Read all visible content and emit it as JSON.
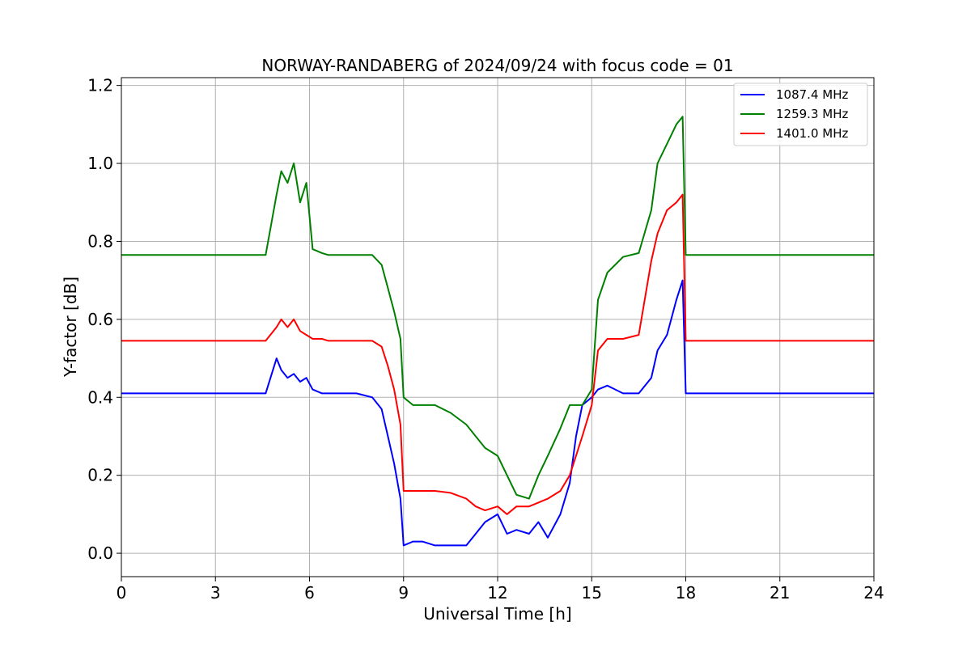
{
  "chart_data": {
    "type": "line",
    "title": "NORWAY-RANDABERG of 2024/09/24 with focus code = 01",
    "xlabel": "Universal Time [h]",
    "ylabel": "Y-factor [dB]",
    "xlim": [
      0,
      24
    ],
    "ylim": [
      -0.06,
      1.22
    ],
    "xticks": [
      0,
      3,
      6,
      9,
      12,
      15,
      18,
      21,
      24
    ],
    "xtick_labels": [
      "0",
      "3",
      "6",
      "9",
      "12",
      "15",
      "18",
      "21",
      "24"
    ],
    "yticks": [
      0.0,
      0.2,
      0.4,
      0.6,
      0.8,
      1.0,
      1.2
    ],
    "ytick_labels": [
      "0.0",
      "0.2",
      "0.4",
      "0.6",
      "0.8",
      "1.0",
      "1.2"
    ],
    "grid": true,
    "legend_position": "top-right",
    "series": [
      {
        "name": "1087.4 MHz",
        "color": "#0000ff",
        "x": [
          0,
          1,
          2,
          3,
          4,
          4.6,
          4.95,
          5.1,
          5.3,
          5.5,
          5.7,
          5.9,
          6.1,
          6.4,
          6.6,
          7,
          7.5,
          8,
          8.3,
          8.5,
          8.7,
          8.9,
          9.0,
          9.3,
          9.6,
          10,
          10.5,
          11,
          11.3,
          11.6,
          12,
          12.3,
          12.6,
          13,
          13.3,
          13.6,
          14,
          14.3,
          14.5,
          14.7,
          15,
          15.2,
          15.5,
          16,
          16.5,
          16.9,
          17.1,
          17.4,
          17.7,
          17.9,
          18.0,
          18.1,
          18.5,
          19,
          20,
          21,
          22,
          23,
          24
        ],
        "y": [
          0.41,
          0.41,
          0.41,
          0.41,
          0.41,
          0.41,
          0.5,
          0.47,
          0.45,
          0.46,
          0.44,
          0.45,
          0.42,
          0.41,
          0.41,
          0.41,
          0.41,
          0.4,
          0.37,
          0.3,
          0.23,
          0.14,
          0.02,
          0.03,
          0.03,
          0.02,
          0.02,
          0.02,
          0.05,
          0.08,
          0.1,
          0.05,
          0.06,
          0.05,
          0.08,
          0.04,
          0.1,
          0.18,
          0.3,
          0.38,
          0.4,
          0.42,
          0.43,
          0.41,
          0.41,
          0.45,
          0.52,
          0.56,
          0.65,
          0.7,
          0.41,
          0.41,
          0.41,
          0.41,
          0.41,
          0.41,
          0.41,
          0.41,
          0.41
        ]
      },
      {
        "name": "1259.3 MHz",
        "color": "#008000",
        "x": [
          0,
          1,
          2,
          3,
          4,
          4.6,
          4.95,
          5.1,
          5.3,
          5.5,
          5.7,
          5.9,
          6.1,
          6.4,
          6.6,
          7,
          7.5,
          8,
          8.3,
          8.5,
          8.7,
          8.9,
          9.0,
          9.3,
          9.6,
          10,
          10.5,
          11,
          11.3,
          11.6,
          12,
          12.3,
          12.6,
          13,
          13.3,
          13.6,
          14,
          14.3,
          14.5,
          14.7,
          15,
          15.2,
          15.5,
          16,
          16.5,
          16.9,
          17.1,
          17.4,
          17.7,
          17.9,
          18.0,
          18.1,
          18.5,
          19,
          20,
          21,
          22,
          23,
          24
        ],
        "y": [
          0.765,
          0.765,
          0.765,
          0.765,
          0.765,
          0.765,
          0.92,
          0.98,
          0.95,
          1.0,
          0.9,
          0.95,
          0.78,
          0.77,
          0.765,
          0.765,
          0.765,
          0.765,
          0.74,
          0.68,
          0.62,
          0.55,
          0.4,
          0.38,
          0.38,
          0.38,
          0.36,
          0.33,
          0.3,
          0.27,
          0.25,
          0.2,
          0.15,
          0.14,
          0.2,
          0.25,
          0.32,
          0.38,
          0.38,
          0.38,
          0.42,
          0.65,
          0.72,
          0.76,
          0.77,
          0.88,
          1.0,
          1.05,
          1.1,
          1.12,
          0.765,
          0.765,
          0.765,
          0.765,
          0.765,
          0.765,
          0.765,
          0.765,
          0.765
        ]
      },
      {
        "name": "1401.0 MHz",
        "color": "#ff0000",
        "x": [
          0,
          1,
          2,
          3,
          4,
          4.6,
          4.95,
          5.1,
          5.3,
          5.5,
          5.7,
          5.9,
          6.1,
          6.4,
          6.6,
          7,
          7.5,
          8,
          8.3,
          8.5,
          8.7,
          8.9,
          9.0,
          9.3,
          9.6,
          10,
          10.5,
          11,
          11.3,
          11.6,
          12,
          12.3,
          12.6,
          13,
          13.3,
          13.6,
          14,
          14.3,
          14.5,
          14.7,
          15,
          15.2,
          15.5,
          16,
          16.5,
          16.9,
          17.1,
          17.4,
          17.7,
          17.9,
          18.0,
          18.1,
          18.5,
          19,
          20,
          21,
          22,
          23,
          24
        ],
        "y": [
          0.545,
          0.545,
          0.545,
          0.545,
          0.545,
          0.545,
          0.58,
          0.6,
          0.58,
          0.6,
          0.57,
          0.56,
          0.55,
          0.55,
          0.545,
          0.545,
          0.545,
          0.545,
          0.53,
          0.48,
          0.42,
          0.33,
          0.16,
          0.16,
          0.16,
          0.16,
          0.155,
          0.14,
          0.12,
          0.11,
          0.12,
          0.1,
          0.12,
          0.12,
          0.13,
          0.14,
          0.16,
          0.2,
          0.25,
          0.3,
          0.38,
          0.52,
          0.55,
          0.55,
          0.56,
          0.75,
          0.82,
          0.88,
          0.9,
          0.92,
          0.545,
          0.545,
          0.545,
          0.545,
          0.545,
          0.545,
          0.545,
          0.545,
          0.545
        ]
      }
    ]
  }
}
